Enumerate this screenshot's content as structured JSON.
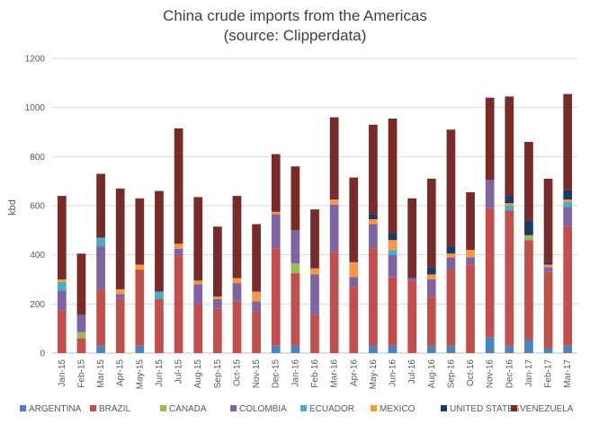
{
  "chart_data": {
    "type": "bar",
    "stacked": true,
    "title_line1": "China crude imports from the Americas",
    "title_line2": "(source: Clipperdata)",
    "ylabel": "kbd",
    "ylim": [
      0,
      1200
    ],
    "yticks": [
      0,
      200,
      400,
      600,
      800,
      1000,
      1200
    ],
    "grid": "horizontal",
    "legend_position": "bottom",
    "categories": [
      "Jan-15",
      "Feb-15",
      "Mar-15",
      "Apr-15",
      "May-15",
      "Jun-15",
      "Jul-15",
      "Aug-15",
      "Sep-15",
      "Oct-15",
      "Nov-15",
      "Dec-15",
      "Jan-16",
      "Feb-16",
      "Mar-16",
      "Apr-16",
      "May-16",
      "Jun-16",
      "Jul-16",
      "Aug-16",
      "Sep-16",
      "Oct-16",
      "Nov-16",
      "Dec-16",
      "Jan-17",
      "Feb-17",
      "Mar-17"
    ],
    "series": [
      {
        "name": "ARGENTINA",
        "color": "#4F81BD",
        "values": [
          0,
          0,
          30,
          0,
          30,
          0,
          0,
          0,
          0,
          0,
          0,
          30,
          30,
          0,
          0,
          0,
          30,
          30,
          0,
          30,
          30,
          0,
          65,
          30,
          55,
          20,
          30
        ]
      },
      {
        "name": "BRAZIL",
        "color": "#C0504D",
        "values": [
          175,
          60,
          230,
          220,
          310,
          220,
          395,
          200,
          180,
          210,
          170,
          395,
          295,
          155,
          410,
          270,
          395,
          280,
          295,
          200,
          310,
          360,
          525,
          550,
          405,
          310,
          485
        ]
      },
      {
        "name": "CANADA",
        "color": "#9BBB59",
        "values": [
          0,
          25,
          0,
          0,
          0,
          0,
          0,
          0,
          0,
          0,
          0,
          0,
          40,
          0,
          0,
          0,
          0,
          0,
          0,
          0,
          0,
          0,
          0,
          0,
          20,
          0,
          0
        ]
      },
      {
        "name": "COLOMBIA",
        "color": "#8064A2",
        "values": [
          80,
          70,
          175,
          20,
          0,
          0,
          30,
          80,
          40,
          75,
          40,
          140,
          135,
          165,
          195,
          40,
          100,
          90,
          10,
          70,
          50,
          30,
          115,
          0,
          0,
          20,
          80
        ]
      },
      {
        "name": "ECUADOR",
        "color": "#4BACC6",
        "values": [
          35,
          0,
          35,
          0,
          0,
          30,
          0,
          0,
          0,
          0,
          0,
          0,
          0,
          0,
          0,
          0,
          0,
          20,
          0,
          0,
          0,
          0,
          0,
          20,
          0,
          0,
          20
        ]
      },
      {
        "name": "MEXICO",
        "color": "#F79646",
        "values": [
          10,
          0,
          0,
          20,
          20,
          0,
          20,
          15,
          10,
          20,
          40,
          10,
          0,
          25,
          20,
          60,
          20,
          40,
          0,
          20,
          15,
          30,
          0,
          10,
          0,
          10,
          10
        ]
      },
      {
        "name": "UNITED STATES",
        "color": "#1F3864",
        "values": [
          0,
          0,
          0,
          0,
          0,
          0,
          0,
          0,
          0,
          0,
          0,
          0,
          0,
          0,
          0,
          0,
          20,
          30,
          0,
          30,
          30,
          0,
          0,
          30,
          60,
          10,
          40
        ]
      },
      {
        "name": "VENEZUELA",
        "color": "#772C2A",
        "values": [
          340,
          250,
          260,
          410,
          270,
          410,
          470,
          340,
          285,
          335,
          275,
          235,
          260,
          240,
          335,
          345,
          365,
          465,
          325,
          360,
          475,
          235,
          335,
          405,
          320,
          340,
          390
        ]
      }
    ]
  }
}
